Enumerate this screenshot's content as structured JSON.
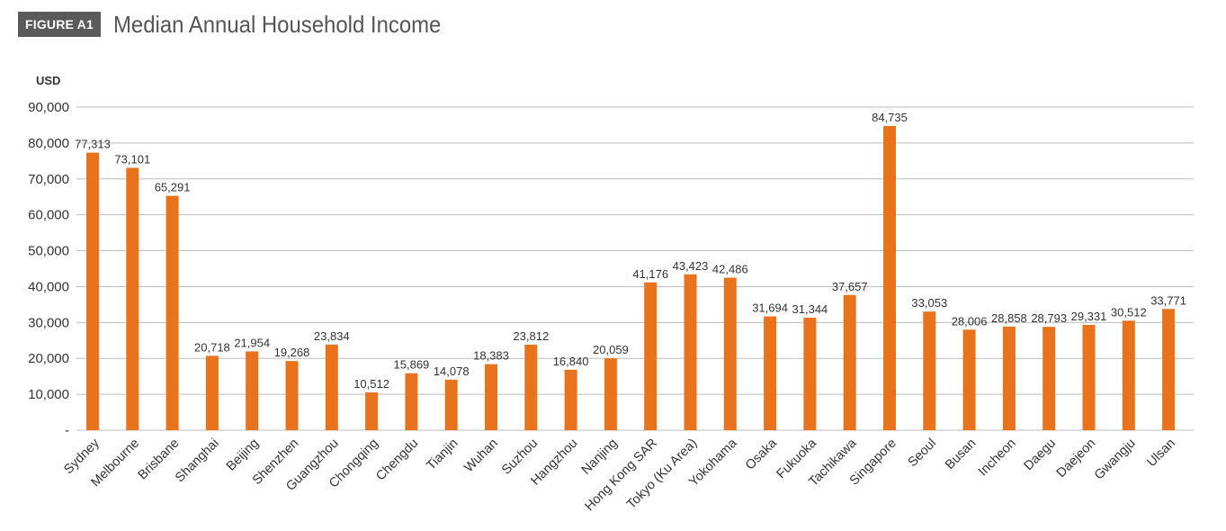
{
  "header": {
    "badge": "FIGURE A1",
    "title": "Median Annual Household Income"
  },
  "colors": {
    "bar": "#E8731C",
    "grid": "#BDBDBD",
    "badge_bg": "#5A5A5A"
  },
  "chart_data": {
    "type": "bar",
    "title": "Median Annual Household Income",
    "ylabel": "USD",
    "xlabel": "",
    "ylim": [
      0,
      90000
    ],
    "yticks": [
      {
        "value": 0,
        "label": "-"
      },
      {
        "value": 10000,
        "label": "10,000"
      },
      {
        "value": 20000,
        "label": "20,000"
      },
      {
        "value": 30000,
        "label": "30,000"
      },
      {
        "value": 40000,
        "label": "40,000"
      },
      {
        "value": 50000,
        "label": "50,000"
      },
      {
        "value": 60000,
        "label": "60,000"
      },
      {
        "value": 70000,
        "label": "70,000"
      },
      {
        "value": 80000,
        "label": "80,000"
      },
      {
        "value": 90000,
        "label": "90,000"
      }
    ],
    "grid": true,
    "legend": "none",
    "categories": [
      "Sydney",
      "Melbourne",
      "Brisbane",
      "Shanghai",
      "Beijing",
      "Shenzhen",
      "Guangzhou",
      "Chongqing",
      "Chengdu",
      "Tianjin",
      "Wuhan",
      "Suzhou",
      "Hangzhou",
      "Nanjing",
      "Hong Kong SAR",
      "Tokyo (Ku Area)",
      "Yokohama",
      "Osaka",
      "Fukuoka",
      "Tachikawa",
      "Singapore",
      "Seoul",
      "Busan",
      "Incheon",
      "Daegu",
      "Daejeon",
      "Gwangju",
      "Ulsan"
    ],
    "values": [
      77313,
      73101,
      65291,
      20718,
      21954,
      19268,
      23834,
      10512,
      15869,
      14078,
      18383,
      23812,
      16840,
      20059,
      41176,
      43423,
      42486,
      31694,
      31344,
      37657,
      84735,
      33053,
      28006,
      28858,
      28793,
      29331,
      30512,
      33771
    ],
    "value_labels": [
      "77,313",
      "73,101",
      "65,291",
      "20,718",
      "21,954",
      "19,268",
      "23,834",
      "10,512",
      "15,869",
      "14,078",
      "18,383",
      "23,812",
      "16,840",
      "20,059",
      "41,176",
      "43,423",
      "42,486",
      "31,694",
      "31,344",
      "37,657",
      "84,735",
      "33,053",
      "28,006",
      "28,858",
      "28,793",
      "29,331",
      "30,512",
      "33,771"
    ]
  }
}
